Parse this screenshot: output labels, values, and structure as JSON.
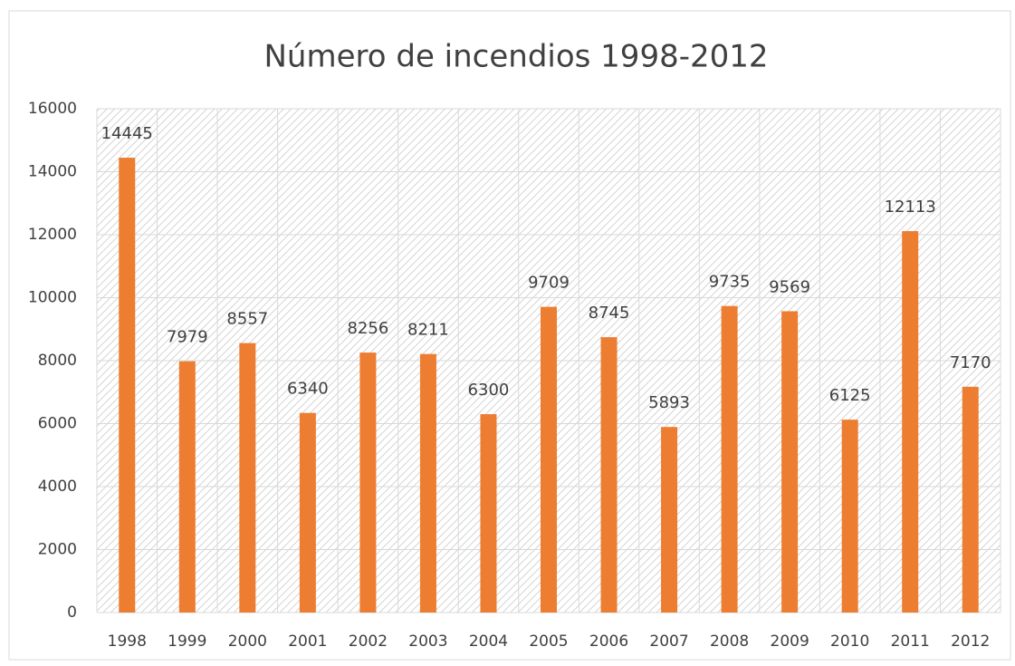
{
  "chart_data": {
    "type": "bar",
    "title": "Número de incendios 1998-2012",
    "categories": [
      "1998",
      "1999",
      "2000",
      "2001",
      "2002",
      "2003",
      "2004",
      "2005",
      "2006",
      "2007",
      "2008",
      "2009",
      "2010",
      "2011",
      "2012"
    ],
    "values": [
      14445,
      7979,
      8557,
      6340,
      8256,
      8211,
      6300,
      9709,
      8745,
      5893,
      9735,
      9569,
      6125,
      12113,
      7170
    ],
    "color": "#ed7d31",
    "ylim": [
      0,
      16000
    ],
    "yticks": [
      0,
      2000,
      4000,
      6000,
      8000,
      10000,
      12000,
      14000,
      16000
    ],
    "grid": true
  }
}
